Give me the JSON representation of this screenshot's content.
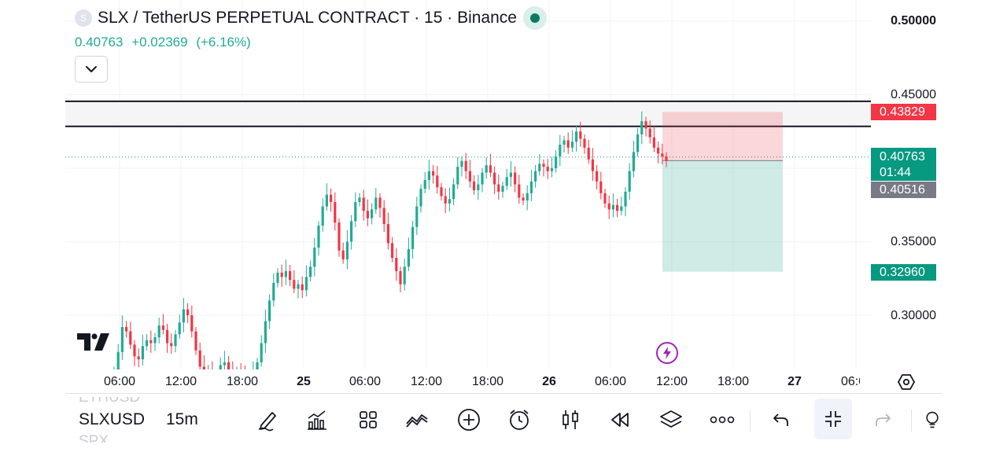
{
  "header": {
    "symbol_badge": "S",
    "title": "SLX / TetherUS PERPETUAL CONTRACT · 15 · Binance",
    "last_price": "0.40763",
    "change": "+0.02369",
    "change_pct": "(+6.16%)"
  },
  "colors": {
    "up": "#22ab94",
    "down": "#f23645",
    "current_price_tag": "#089981",
    "target_tag": "#089981",
    "stop_tag": "#f23645",
    "bid_tag": "#787b86"
  },
  "price_axis": {
    "labels": [
      "0.50000",
      "0.45000",
      "0.35000",
      "0.30000"
    ]
  },
  "price_tags": {
    "stop": "0.43829",
    "current": "0.40763",
    "countdown": "01:44",
    "bid": "0.40516",
    "target": "0.32960"
  },
  "time_axis": {
    "labels": [
      {
        "text": "06:00",
        "bold": false
      },
      {
        "text": "12:00",
        "bold": false
      },
      {
        "text": "18:00",
        "bold": false
      },
      {
        "text": "25",
        "bold": true
      },
      {
        "text": "06:00",
        "bold": false
      },
      {
        "text": "12:00",
        "bold": false
      },
      {
        "text": "18:00",
        "bold": false
      },
      {
        "text": "26",
        "bold": true
      },
      {
        "text": "06:00",
        "bold": false
      },
      {
        "text": "12:00",
        "bold": false
      },
      {
        "text": "18:00",
        "bold": false
      },
      {
        "text": "27",
        "bold": true
      },
      {
        "text": "06:0",
        "bold": false
      }
    ]
  },
  "chart_data": {
    "type": "candlestick",
    "price_range": [
      0.255,
      0.51
    ],
    "horizontal_lines": [
      0.4455,
      0.4285
    ],
    "current_price": 0.40763,
    "position": {
      "kind": "short",
      "entry": 0.40516,
      "stop": 0.43829,
      "target": 0.3296
    },
    "closes": [
      0.262,
      0.275,
      0.292,
      0.289,
      0.28,
      0.272,
      0.27,
      0.279,
      0.283,
      0.281,
      0.285,
      0.293,
      0.29,
      0.281,
      0.279,
      0.287,
      0.295,
      0.304,
      0.3,
      0.289,
      0.276,
      0.265,
      0.259,
      0.262,
      0.258,
      0.26,
      0.266,
      0.268,
      0.262,
      0.258,
      0.262,
      0.258,
      0.256,
      0.259,
      0.262,
      0.268,
      0.281,
      0.296,
      0.31,
      0.322,
      0.329,
      0.326,
      0.33,
      0.324,
      0.318,
      0.321,
      0.317,
      0.326,
      0.333,
      0.346,
      0.361,
      0.374,
      0.382,
      0.377,
      0.363,
      0.344,
      0.338,
      0.35,
      0.364,
      0.377,
      0.38,
      0.371,
      0.366,
      0.372,
      0.38,
      0.373,
      0.362,
      0.349,
      0.339,
      0.33,
      0.321,
      0.333,
      0.345,
      0.36,
      0.374,
      0.386,
      0.392,
      0.398,
      0.395,
      0.387,
      0.381,
      0.376,
      0.379,
      0.389,
      0.401,
      0.405,
      0.398,
      0.391,
      0.385,
      0.389,
      0.397,
      0.402,
      0.397,
      0.389,
      0.384,
      0.388,
      0.394,
      0.397,
      0.389,
      0.38,
      0.378,
      0.383,
      0.391,
      0.398,
      0.403,
      0.401,
      0.398,
      0.4,
      0.408,
      0.416,
      0.419,
      0.414,
      0.418,
      0.425,
      0.42,
      0.414,
      0.406,
      0.398,
      0.391,
      0.383,
      0.376,
      0.372,
      0.375,
      0.371,
      0.374,
      0.384,
      0.398,
      0.411,
      0.423,
      0.432,
      0.427,
      0.421,
      0.414,
      0.41,
      0.408,
      0.405
    ],
    "note_series": "approximate 15m closes read from the chart"
  },
  "toolbar": {
    "symbol_ghost_above": "ETHUSD",
    "symbol": "SLXUSD",
    "symbol_ghost_below": "SPX",
    "interval": "15m"
  }
}
